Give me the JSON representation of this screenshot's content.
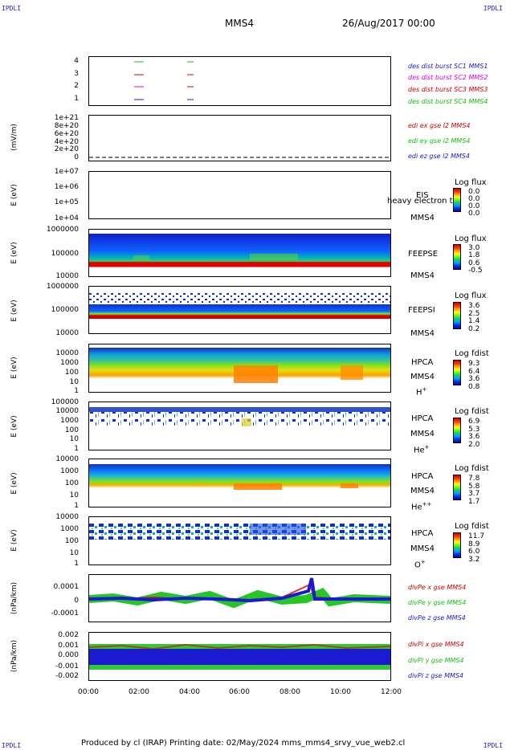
{
  "corners": {
    "tl": "IPDLI",
    "tr": "IPDLI",
    "bl": "IPDLI",
    "br": "IPDLI"
  },
  "header": {
    "title": "MMS4",
    "date": "26/Aug/2017 00:00"
  },
  "footer": {
    "text": "Produced by cl (IRAP)   Printing date: 02/May/2024   mms_mms4_srvy_vue_web2.cl"
  },
  "chart_data": {
    "type": "multi-panel",
    "x_ticks": [
      "00:00",
      "02:00",
      "04:00",
      "06:00",
      "08:00",
      "10:00",
      "12:00"
    ],
    "panels": [
      {
        "id": "des",
        "ylabel": "",
        "y_ticks": [
          "4",
          "3",
          "2",
          "1"
        ],
        "right_labels": [
          {
            "text": "des dist burst SC1 MMS1",
            "color": "#1a1ad0"
          },
          {
            "text": "des dist burst SC2 MMS2",
            "color": "#e000e0"
          },
          {
            "text": "des dist burst SC3 MMS3",
            "color": "#d00000"
          },
          {
            "text": "des dist burst SC4 MMS4",
            "color": "#10c010"
          }
        ]
      },
      {
        "id": "edi",
        "ylabel": "(mV/m)",
        "y_ticks": [
          "1e+21",
          "8e+20",
          "6e+20",
          "4e+20",
          "2e+20",
          "0"
        ],
        "right_labels": [
          {
            "text": "edi ex gse l2 MMS4",
            "color": "#d00000"
          },
          {
            "text": "edi ey gse l2 MMS4",
            "color": "#10c010"
          },
          {
            "text": "edi ez gse l2 MMS4",
            "color": "#1a1ad0"
          }
        ]
      },
      {
        "id": "eis",
        "ylabel": "E (eV)",
        "y_ticks": [
          "1e+07",
          "1e+06",
          "1e+05",
          "1e+04"
        ],
        "label1": "EIS",
        "label_overlay": "heavy electron tof",
        "label2": "MMS4",
        "cbar_title": "Log flux",
        "cbar_ticks": [
          "0.0",
          "0.0",
          "0.0",
          "0.0"
        ]
      },
      {
        "id": "feepse",
        "ylabel": "E (eV)",
        "y_ticks": [
          "1000000",
          "100000",
          "10000"
        ],
        "label1": "FEEPSE",
        "label2": "MMS4",
        "cbar_title": "Log flux",
        "cbar_ticks": [
          "3.0",
          "1.8",
          "0.6",
          "-0.5"
        ]
      },
      {
        "id": "feepsi",
        "ylabel": "E (eV)",
        "y_ticks": [
          "1000000",
          "100000",
          "10000"
        ],
        "label1": "FEEPSI",
        "label2": "MMS4",
        "cbar_title": "Log flux",
        "cbar_ticks": [
          "3.6",
          "2.5",
          "1.4",
          "0.2"
        ]
      },
      {
        "id": "hpca_h",
        "ylabel": "E (eV)",
        "y_ticks": [
          "10000",
          "1000",
          "100",
          "10",
          "1"
        ],
        "label1": "HPCA",
        "label2": "MMS4",
        "species": "H",
        "species_sup": "+",
        "cbar_title": "Log fdist",
        "cbar_ticks": [
          "9.3",
          "6.4",
          "3.6",
          "0.8"
        ]
      },
      {
        "id": "hpca_he1",
        "ylabel": "E (eV)",
        "y_ticks": [
          "100000",
          "10000",
          "1000",
          "100",
          "10",
          "1"
        ],
        "label1": "HPCA",
        "label2": "MMS4",
        "species": "He",
        "species_sup": "+",
        "cbar_title": "Log fdist",
        "cbar_ticks": [
          "6.9",
          "5.3",
          "3.6",
          "2.0"
        ]
      },
      {
        "id": "hpca_he2",
        "ylabel": "E (eV)",
        "y_ticks": [
          "10000",
          "1000",
          "100",
          "10",
          "1"
        ],
        "label1": "HPCA",
        "label2": "MMS4",
        "species": "He",
        "species_sup": "++",
        "cbar_title": "Log fdist",
        "cbar_ticks": [
          "7.8",
          "5.8",
          "3.7",
          "1.7"
        ]
      },
      {
        "id": "hpca_o",
        "ylabel": "E (eV)",
        "y_ticks": [
          "10000",
          "1000",
          "100",
          "10",
          "1"
        ],
        "label1": "HPCA",
        "label2": "MMS4",
        "species": "O",
        "species_sup": "+",
        "cbar_title": "Log fdist",
        "cbar_ticks": [
          "11.7",
          "8.9",
          "6.0",
          "3.2"
        ]
      },
      {
        "id": "divpe",
        "ylabel": "(nPa/km)",
        "y_ticks": [
          "0.0001",
          "0",
          "-0.0001"
        ],
        "right_labels": [
          {
            "text": "divPe x gse MMS4",
            "color": "#d00000"
          },
          {
            "text": "divPe y gse MMS4",
            "color": "#10c010"
          },
          {
            "text": "divPe z gse MMS4",
            "color": "#1a1ad0"
          }
        ]
      },
      {
        "id": "divpi",
        "ylabel": "(nPa/km)",
        "y_ticks": [
          "0.002",
          "0.001",
          "0.000",
          "-0.001",
          "-0.002"
        ],
        "right_labels": [
          {
            "text": "divPi x gse MMS4",
            "color": "#d00000"
          },
          {
            "text": "divPi y gse MMS4",
            "color": "#10c010"
          },
          {
            "text": "divPi z gse MMS4",
            "color": "#1a1ad0"
          }
        ]
      }
    ]
  }
}
